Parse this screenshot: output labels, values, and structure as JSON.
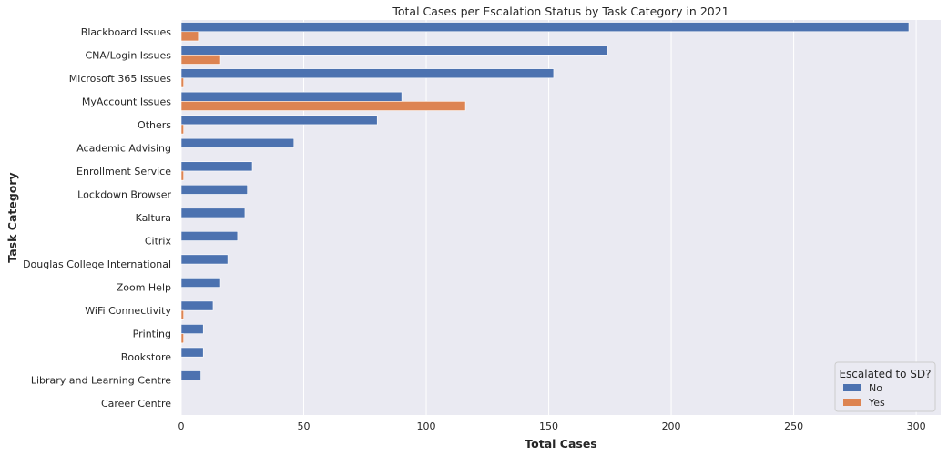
{
  "chart_data": {
    "type": "bar",
    "orientation": "horizontal",
    "title": "Total Cases per Escalation Status by Task Category in 2021",
    "xlabel": "Total Cases",
    "ylabel": "Task Category",
    "xlim": [
      0,
      310
    ],
    "xticks": [
      0,
      50,
      100,
      150,
      200,
      250,
      300
    ],
    "grid": true,
    "legend": {
      "title": "Escalated to SD?",
      "placement": "bottom-right"
    },
    "categories": [
      "Blackboard Issues",
      "CNA/Login Issues",
      "Microsoft 365 Issues",
      "MyAccount Issues",
      "Others",
      "Academic Advising",
      "Enrollment Service",
      "Lockdown Browser",
      "Kaltura",
      "Citrix",
      "Douglas College International",
      "Zoom Help",
      "WiFi Connectivity",
      "Printing",
      "Bookstore",
      "Library and Learning Centre",
      "Career Centre"
    ],
    "series": [
      {
        "name": "No",
        "color": "#4c72b0",
        "values": [
          297,
          174,
          152,
          90,
          80,
          46,
          29,
          27,
          26,
          23,
          19,
          16,
          13,
          9,
          9,
          8,
          0
        ]
      },
      {
        "name": "Yes",
        "color": "#dd8452",
        "values": [
          7,
          16,
          1,
          116,
          1,
          0,
          1,
          0,
          0,
          0,
          0,
          0,
          1,
          1,
          0,
          0,
          0
        ]
      }
    ]
  }
}
